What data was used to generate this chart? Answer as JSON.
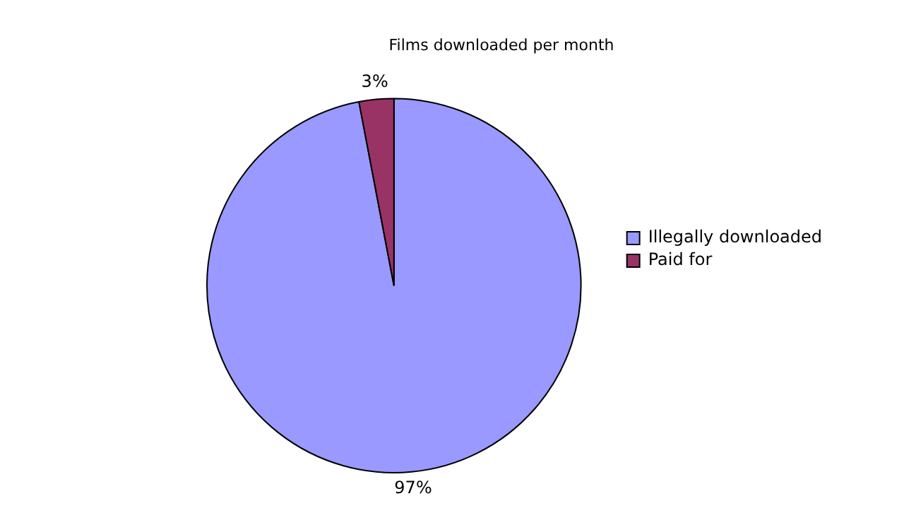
{
  "chart_data": {
    "type": "pie",
    "title": "Films downloaded per month",
    "categories": [
      "Illegally downloaded",
      "Paid for"
    ],
    "values": [
      97,
      3
    ],
    "colors": [
      "#9999ff",
      "#993366"
    ],
    "value_labels": [
      "97%",
      "3%"
    ],
    "legend": "right"
  }
}
